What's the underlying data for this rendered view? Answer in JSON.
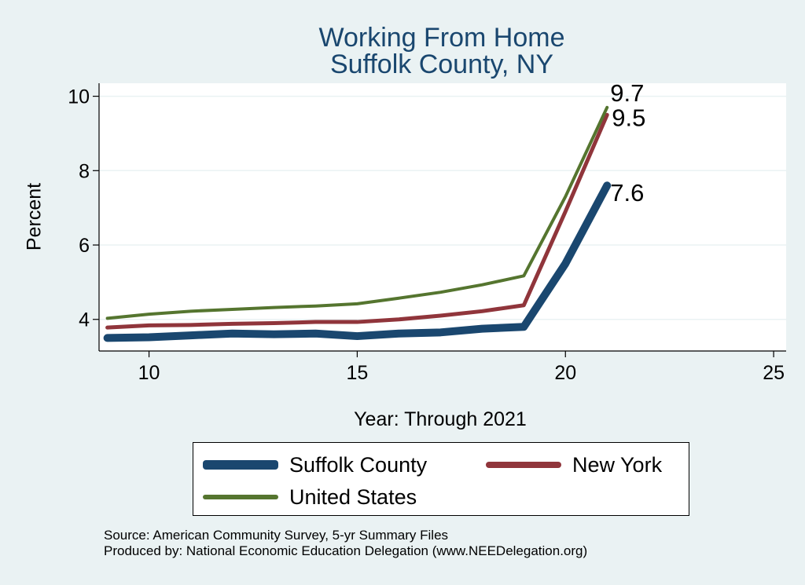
{
  "chart_data": {
    "type": "line",
    "title": "Working From Home",
    "subtitle": "Suffolk County, NY",
    "xlabel": "Year: Through 2021",
    "ylabel": "Percent",
    "xlim": [
      8.8,
      25.3
    ],
    "ylim": [
      3.15,
      10.35
    ],
    "x_ticks": [
      10,
      15,
      20,
      25
    ],
    "y_ticks": [
      4,
      6,
      8,
      10
    ],
    "grid": true,
    "legend_position": "bottom",
    "series": [
      {
        "name": "Suffolk County",
        "color": "#1a476f",
        "x": [
          9,
          10,
          11,
          12,
          13,
          14,
          15,
          16,
          17,
          18,
          19,
          20,
          21
        ],
        "values": [
          3.5,
          3.52,
          3.57,
          3.62,
          3.6,
          3.62,
          3.55,
          3.62,
          3.65,
          3.75,
          3.8,
          5.5,
          7.6
        ],
        "end_label": "7.6"
      },
      {
        "name": "New York",
        "color": "#90353b",
        "x": [
          9,
          10,
          11,
          12,
          13,
          14,
          15,
          16,
          17,
          18,
          19,
          20,
          21
        ],
        "values": [
          3.78,
          3.84,
          3.85,
          3.88,
          3.9,
          3.93,
          3.93,
          4.0,
          4.1,
          4.22,
          4.38,
          6.9,
          9.5
        ],
        "end_label": "9.5"
      },
      {
        "name": "United States",
        "color": "#55752f",
        "x": [
          9,
          10,
          11,
          12,
          13,
          14,
          15,
          16,
          17,
          18,
          19,
          20,
          21
        ],
        "values": [
          4.03,
          4.14,
          4.22,
          4.27,
          4.32,
          4.36,
          4.42,
          4.57,
          4.73,
          4.93,
          5.17,
          7.3,
          9.7
        ],
        "end_label": "9.7"
      }
    ]
  },
  "notes": {
    "source": "Source: American Community Survey, 5-yr Summary Files",
    "produced_by": "Produced by: National Economic Education Delegation (www.NEEDelegation.org)"
  }
}
